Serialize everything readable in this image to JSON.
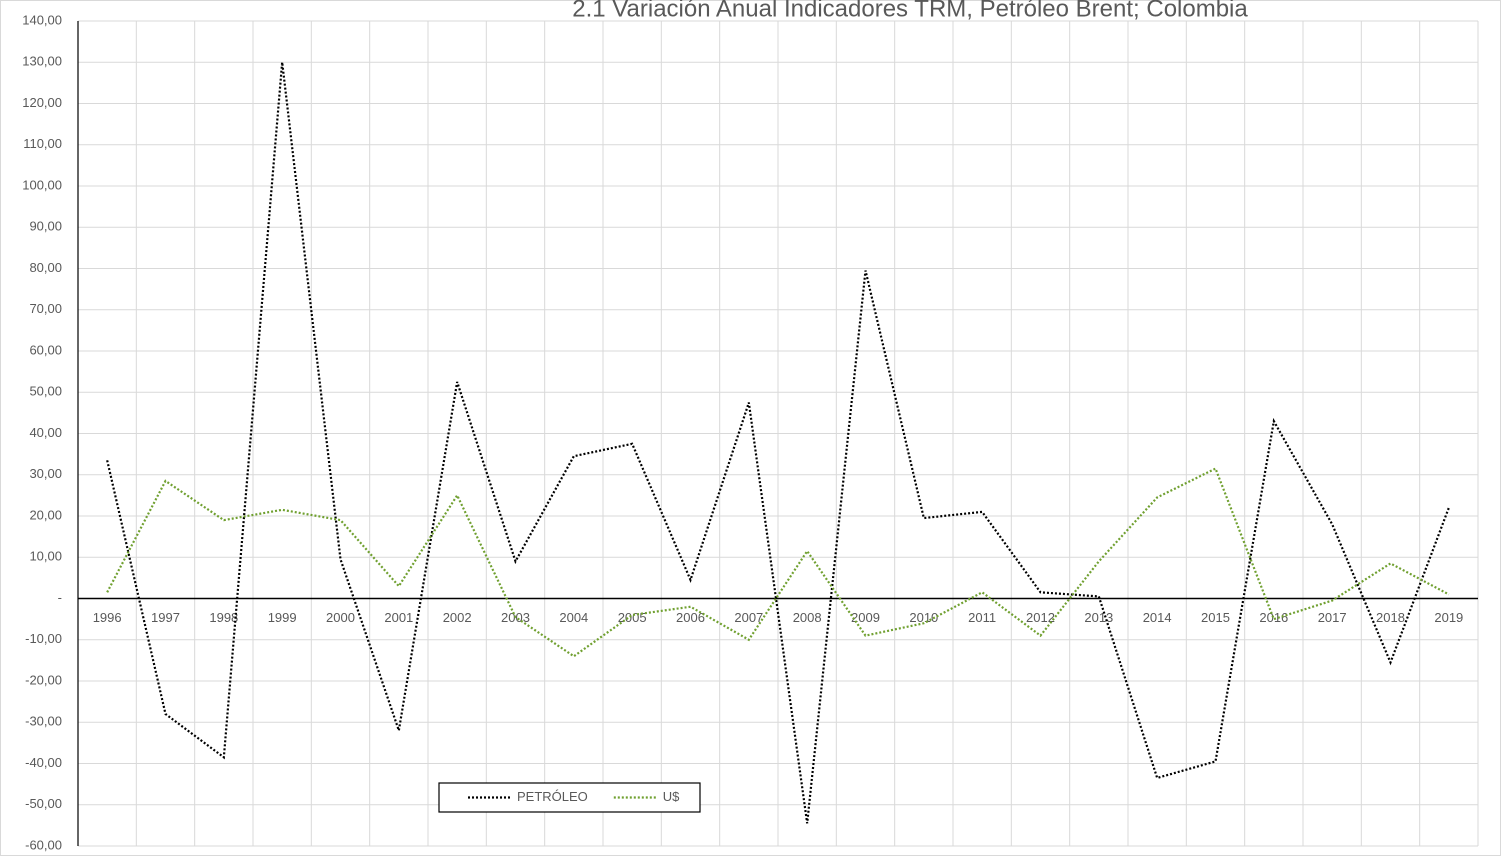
{
  "chart_data": {
    "type": "line",
    "title": "2.1 Variación Anual Indicadores TRM, Petróleo Brent; Colombia",
    "categories": [
      "1996",
      "1997",
      "1998",
      "1999",
      "2000",
      "2001",
      "2002",
      "2003",
      "2004",
      "2005",
      "2006",
      "2007",
      "2008",
      "2009",
      "2010",
      "2011",
      "2012",
      "2013",
      "2014",
      "2015",
      "2016",
      "2017",
      "2018",
      "2019"
    ],
    "series": [
      {
        "name": "PETRÓLEO",
        "color": "#000000",
        "values": [
          33.5,
          -28,
          -38.5,
          130,
          9.5,
          -32,
          52.5,
          9,
          34.5,
          37.5,
          4.5,
          47.5,
          -54.5,
          79.5,
          19.5,
          21,
          1.5,
          0.5,
          -43.5,
          -39.5,
          43,
          18,
          -15.5,
          22
        ]
      },
      {
        "name": "U$",
        "color": "#70a030",
        "values": [
          1.5,
          28.5,
          19,
          21.5,
          19,
          3,
          25,
          -4.5,
          -14,
          -4,
          -2,
          -10,
          11.5,
          -9,
          -6,
          1.5,
          -9,
          9,
          24.5,
          31.5,
          -5,
          -0.5,
          8.5,
          1
        ]
      }
    ],
    "ylim": [
      -60,
      140
    ],
    "yticks": [
      {
        "value": -60,
        "label": "-60,00"
      },
      {
        "value": -50,
        "label": "-50,00"
      },
      {
        "value": -40,
        "label": "-40,00"
      },
      {
        "value": -30,
        "label": "-30,00"
      },
      {
        "value": -20,
        "label": "-20,00"
      },
      {
        "value": -10,
        "label": "-10,00"
      },
      {
        "value": 0,
        "label": "-"
      },
      {
        "value": 10,
        "label": "10,00"
      },
      {
        "value": 20,
        "label": "20,00"
      },
      {
        "value": 30,
        "label": "30,00"
      },
      {
        "value": 40,
        "label": "40,00"
      },
      {
        "value": 50,
        "label": "50,00"
      },
      {
        "value": 60,
        "label": "60,00"
      },
      {
        "value": 70,
        "label": "70,00"
      },
      {
        "value": 80,
        "label": "80,00"
      },
      {
        "value": 90,
        "label": "90,00"
      },
      {
        "value": 100,
        "label": "100,00"
      },
      {
        "value": 110,
        "label": "110,00"
      },
      {
        "value": 120,
        "label": "120,00"
      },
      {
        "value": 130,
        "label": "130,00"
      },
      {
        "value": 140,
        "label": "140,00"
      }
    ],
    "grid": true,
    "line_style": "dotted"
  }
}
